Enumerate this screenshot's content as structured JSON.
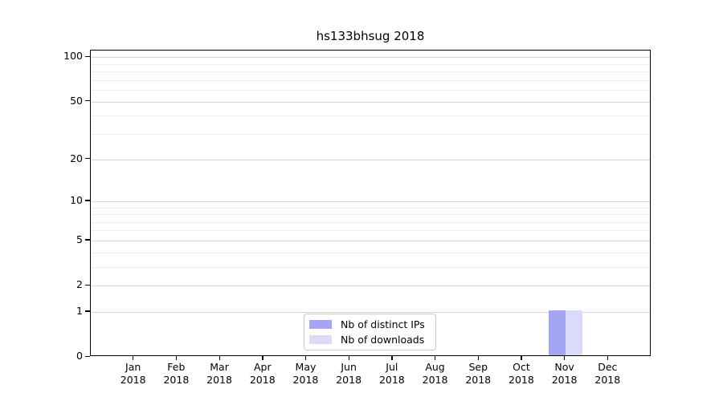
{
  "chart_data": {
    "type": "bar",
    "title": "hs133bhsug 2018",
    "categories": [
      {
        "month": "Jan",
        "year": "2018"
      },
      {
        "month": "Feb",
        "year": "2018"
      },
      {
        "month": "Mar",
        "year": "2018"
      },
      {
        "month": "Apr",
        "year": "2018"
      },
      {
        "month": "May",
        "year": "2018"
      },
      {
        "month": "Jun",
        "year": "2018"
      },
      {
        "month": "Jul",
        "year": "2018"
      },
      {
        "month": "Aug",
        "year": "2018"
      },
      {
        "month": "Sep",
        "year": "2018"
      },
      {
        "month": "Oct",
        "year": "2018"
      },
      {
        "month": "Nov",
        "year": "2018"
      },
      {
        "month": "Dec",
        "year": "2018"
      }
    ],
    "series": [
      {
        "name": "Nb of distinct IPs",
        "color": "#a5a5f5",
        "values": [
          0,
          0,
          0,
          0,
          0,
          0,
          0,
          0,
          0,
          0,
          1,
          0
        ]
      },
      {
        "name": "Nb of downloads",
        "color": "#dbdbf9",
        "values": [
          0,
          0,
          0,
          0,
          0,
          0,
          0,
          0,
          0,
          0,
          1,
          0
        ]
      }
    ],
    "y_scale": "log1p",
    "ylim": [
      0,
      111
    ],
    "y_ticks": [
      0,
      1,
      2,
      5,
      10,
      20,
      50,
      100
    ],
    "grid_major": [
      1,
      2,
      5,
      10,
      20,
      50,
      100
    ],
    "grid_minor": [
      3,
      4,
      6,
      7,
      8,
      9,
      30,
      40,
      60,
      70,
      80,
      90
    ],
    "grid": "horizontal",
    "legend_position": "bottom-center",
    "xlabel": "",
    "ylabel": ""
  }
}
